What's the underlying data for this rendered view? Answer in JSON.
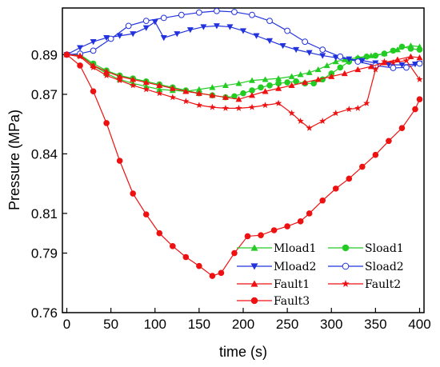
{
  "chart_data": {
    "type": "line",
    "xlabel": "time (s)",
    "ylabel": "Pressure (MPa)",
    "xlim": [
      -5,
      405
    ],
    "ylim": [
      0.76,
      0.9135
    ],
    "xticks": [
      0,
      50,
      100,
      150,
      200,
      250,
      300,
      350,
      400
    ],
    "yticks": [
      0.76,
      0.79,
      0.81,
      0.84,
      0.87,
      0.89
    ],
    "ytick_labels": [
      "0.76",
      "0.79",
      "0.81",
      "0.84",
      "0.87",
      "0.89"
    ],
    "grid": false,
    "legend": "bottom-right",
    "series": [
      {
        "name": "Mload1",
        "color": "#22cc22",
        "marker": "triangle-up",
        "x": [
          0,
          15,
          30,
          45,
          60,
          75,
          90,
          105,
          120,
          135,
          150,
          165,
          180,
          195,
          210,
          225,
          240,
          255,
          265,
          275,
          285,
          295,
          305,
          315,
          330,
          345,
          360,
          375,
          390,
          400
        ],
        "y": [
          0.89,
          0.89,
          0.8845,
          0.8805,
          0.8775,
          0.8755,
          0.874,
          0.8725,
          0.872,
          0.8715,
          0.8725,
          0.8735,
          0.8745,
          0.8755,
          0.877,
          0.8775,
          0.878,
          0.879,
          0.88,
          0.881,
          0.8825,
          0.8845,
          0.8865,
          0.8875,
          0.8885,
          0.8895,
          0.8905,
          0.8925,
          0.8945,
          0.894
        ]
      },
      {
        "name": "Sload1",
        "color": "#22cc22",
        "marker": "circle",
        "x": [
          0,
          15,
          30,
          45,
          60,
          75,
          90,
          105,
          120,
          135,
          150,
          165,
          180,
          190,
          200,
          210,
          220,
          230,
          240,
          250,
          260,
          270,
          280,
          290,
          300,
          310,
          320,
          330,
          340,
          350,
          360,
          370,
          380,
          390,
          400
        ],
        "y": [
          0.89,
          0.89,
          0.8855,
          0.882,
          0.8795,
          0.878,
          0.8765,
          0.875,
          0.8735,
          0.872,
          0.8705,
          0.8695,
          0.8685,
          0.869,
          0.8705,
          0.872,
          0.8735,
          0.8745,
          0.8755,
          0.876,
          0.8765,
          0.8755,
          0.8755,
          0.8775,
          0.8805,
          0.8835,
          0.8865,
          0.888,
          0.889,
          0.8895,
          0.8905,
          0.892,
          0.894,
          0.893,
          0.8925
        ]
      },
      {
        "name": "Mload2",
        "color": "#2233dd",
        "marker": "triangle-down",
        "x": [
          0,
          15,
          30,
          45,
          60,
          75,
          90,
          100,
          110,
          125,
          140,
          155,
          170,
          185,
          200,
          215,
          230,
          245,
          260,
          275,
          290,
          305,
          320,
          335,
          350,
          365,
          380,
          395,
          400
        ],
        "y": [
          0.89,
          0.8935,
          0.8965,
          0.8985,
          0.8995,
          0.9005,
          0.9035,
          0.9065,
          0.8985,
          0.9005,
          0.9025,
          0.904,
          0.9045,
          0.904,
          0.902,
          0.8995,
          0.897,
          0.8945,
          0.8925,
          0.891,
          0.8895,
          0.8885,
          0.8878,
          0.887,
          0.8858,
          0.885,
          0.8848,
          0.8852,
          0.8855
        ]
      },
      {
        "name": "Sload2",
        "color": "#2233dd",
        "marker": "circle-open",
        "x": [
          0,
          15,
          30,
          50,
          70,
          90,
          110,
          130,
          150,
          170,
          190,
          210,
          230,
          250,
          270,
          290,
          310,
          330,
          350,
          370,
          385,
          400
        ],
        "y": [
          0.89,
          0.8905,
          0.892,
          0.898,
          0.9045,
          0.907,
          0.9085,
          0.91,
          0.9112,
          0.912,
          0.9115,
          0.91,
          0.907,
          0.902,
          0.8965,
          0.8925,
          0.889,
          0.8865,
          0.8845,
          0.8833,
          0.8835,
          0.8855
        ]
      },
      {
        "name": "Fault1",
        "color": "#ee1111",
        "marker": "triangle-up",
        "x": [
          0,
          15,
          30,
          45,
          60,
          75,
          90,
          105,
          120,
          135,
          150,
          165,
          180,
          195,
          210,
          225,
          240,
          255,
          270,
          285,
          300,
          315,
          330,
          345,
          360,
          375,
          390,
          400
        ],
        "y": [
          0.89,
          0.8895,
          0.8845,
          0.8815,
          0.879,
          0.8775,
          0.876,
          0.8745,
          0.873,
          0.8715,
          0.8705,
          0.8695,
          0.8685,
          0.8675,
          0.8695,
          0.8715,
          0.873,
          0.8745,
          0.876,
          0.8775,
          0.879,
          0.8805,
          0.8825,
          0.884,
          0.886,
          0.8875,
          0.889,
          0.8885
        ]
      },
      {
        "name": "Fault2",
        "color": "#ee1111",
        "marker": "star",
        "x": [
          0,
          15,
          30,
          45,
          60,
          75,
          90,
          105,
          120,
          135,
          150,
          165,
          180,
          195,
          210,
          225,
          240,
          255,
          265,
          275,
          290,
          305,
          320,
          330,
          340,
          350,
          360,
          370,
          385,
          400
        ],
        "y": [
          0.89,
          0.889,
          0.8835,
          0.8795,
          0.877,
          0.8745,
          0.8725,
          0.8705,
          0.8685,
          0.8665,
          0.8645,
          0.8635,
          0.863,
          0.863,
          0.8635,
          0.8645,
          0.8655,
          0.8605,
          0.8565,
          0.853,
          0.8565,
          0.8605,
          0.8625,
          0.863,
          0.8655,
          0.8825,
          0.8865,
          0.886,
          0.887,
          0.8775
        ]
      },
      {
        "name": "Fault3",
        "color": "#ee1111",
        "marker": "circle",
        "x": [
          0,
          15,
          30,
          45,
          60,
          75,
          90,
          105,
          120,
          135,
          150,
          165,
          175,
          190,
          205,
          220,
          235,
          250,
          265,
          275,
          290,
          305,
          320,
          335,
          350,
          365,
          380,
          395,
          400
        ],
        "y": [
          0.89,
          0.8845,
          0.8715,
          0.8555,
          0.8365,
          0.82,
          0.8095,
          0.8,
          0.7935,
          0.788,
          0.7835,
          0.7785,
          0.78,
          0.79,
          0.7985,
          0.799,
          0.8015,
          0.8035,
          0.806,
          0.81,
          0.8165,
          0.8225,
          0.8275,
          0.8335,
          0.8395,
          0.8465,
          0.853,
          0.8625,
          0.8675
        ]
      }
    ]
  }
}
